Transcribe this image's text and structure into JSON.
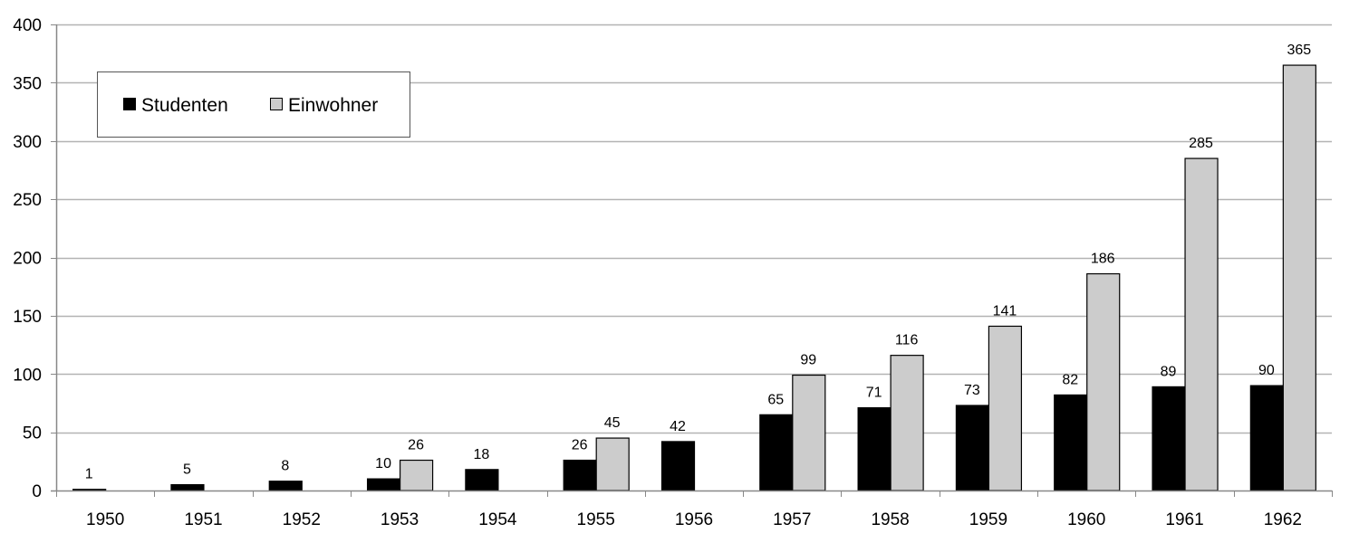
{
  "chart_data": {
    "type": "bar",
    "categories": [
      "1950",
      "1951",
      "1952",
      "1953",
      "1954",
      "1955",
      "1956",
      "1957",
      "1958",
      "1959",
      "1960",
      "1961",
      "1962"
    ],
    "series": [
      {
        "name": "Studenten",
        "color": "#000000",
        "values": [
          1,
          5,
          8,
          10,
          18,
          26,
          42,
          65,
          71,
          73,
          82,
          89,
          90
        ],
        "labels": [
          "1",
          "5",
          "8",
          "10",
          "18",
          "26",
          "42",
          "65",
          "71",
          "73",
          "82",
          "89",
          "90"
        ]
      },
      {
        "name": "Einwohner",
        "color": "#cccccc",
        "values": [
          null,
          null,
          null,
          26,
          null,
          45,
          null,
          99,
          116,
          141,
          186,
          285,
          365
        ],
        "labels": [
          null,
          null,
          null,
          "26",
          null,
          "45",
          null,
          "99",
          "116",
          "141",
          "186",
          "285",
          "365"
        ]
      }
    ],
    "yticks": [
      "0",
      "50",
      "100",
      "150",
      "200",
      "250",
      "300",
      "350",
      "400"
    ],
    "ylim": [
      0,
      400
    ],
    "grid": true,
    "legend_position": "top-left",
    "title": "",
    "xlabel": "",
    "ylabel": ""
  }
}
